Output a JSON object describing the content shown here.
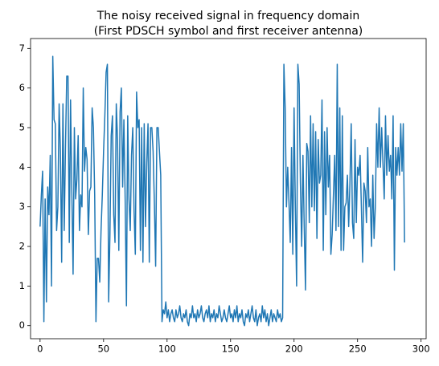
{
  "chart_data": {
    "type": "line",
    "title": [
      "The noisy received signal in frequency domain",
      "(First PDSCH symbol and first receiver antenna)"
    ],
    "x": [
      0,
      1,
      2,
      3,
      4,
      5,
      6,
      7,
      8,
      9,
      10,
      11,
      12,
      13,
      14,
      15,
      16,
      17,
      18,
      19,
      20,
      21,
      22,
      23,
      24,
      25,
      26,
      27,
      28,
      29,
      30,
      31,
      32,
      33,
      34,
      35,
      36,
      37,
      38,
      39,
      40,
      41,
      42,
      43,
      44,
      45,
      46,
      47,
      48,
      49,
      50,
      51,
      52,
      53,
      54,
      55,
      56,
      57,
      58,
      59,
      60,
      61,
      62,
      63,
      64,
      65,
      66,
      67,
      68,
      69,
      70,
      71,
      72,
      73,
      74,
      75,
      76,
      77,
      78,
      79,
      80,
      81,
      82,
      83,
      84,
      85,
      86,
      87,
      88,
      89,
      90,
      91,
      92,
      93,
      94,
      95,
      96,
      97,
      98,
      99,
      100,
      101,
      102,
      103,
      104,
      105,
      106,
      107,
      108,
      109,
      110,
      111,
      112,
      113,
      114,
      115,
      116,
      117,
      118,
      119,
      120,
      121,
      122,
      123,
      124,
      125,
      126,
      127,
      128,
      129,
      130,
      131,
      132,
      133,
      134,
      135,
      136,
      137,
      138,
      139,
      140,
      141,
      142,
      143,
      144,
      145,
      146,
      147,
      148,
      149,
      150,
      151,
      152,
      153,
      154,
      155,
      156,
      157,
      158,
      159,
      160,
      161,
      162,
      163,
      164,
      165,
      166,
      167,
      168,
      169,
      170,
      171,
      172,
      173,
      174,
      175,
      176,
      177,
      178,
      179,
      180,
      181,
      182,
      183,
      184,
      185,
      186,
      187,
      188,
      189,
      190,
      191,
      192,
      193,
      194,
      195,
      196,
      197,
      198,
      199,
      200,
      201,
      202,
      203,
      204,
      205,
      206,
      207,
      208,
      209,
      210,
      211,
      212,
      213,
      214,
      215,
      216,
      217,
      218,
      219,
      220,
      221,
      222,
      223,
      224,
      225,
      226,
      227,
      228,
      229,
      230,
      231,
      232,
      233,
      234,
      235,
      236,
      237,
      238,
      239,
      240,
      241,
      242,
      243,
      244,
      245,
      246,
      247,
      248,
      249,
      250,
      251,
      252,
      253,
      254,
      255,
      256,
      257,
      258,
      259,
      260,
      261,
      262,
      263,
      264,
      265,
      266,
      267,
      268,
      269,
      270,
      271,
      272,
      273,
      274,
      275,
      276,
      277,
      278,
      279,
      280,
      281,
      282,
      283,
      284,
      285,
      286,
      287
    ],
    "series": [
      {
        "color": "#1f77b4",
        "values": [
          2.5,
          3.3,
          3.9,
          0.1,
          3.2,
          0.6,
          3.5,
          2.8,
          4.3,
          1.0,
          6.8,
          5.2,
          5.1,
          2.4,
          3.0,
          5.6,
          4.4,
          1.6,
          5.6,
          2.4,
          4.5,
          6.3,
          6.3,
          2.1,
          5.7,
          3.4,
          1.3,
          5.0,
          3.2,
          3.7,
          4.8,
          2.4,
          3.3,
          3.0,
          6.0,
          3.9,
          4.5,
          4.2,
          2.3,
          3.4,
          3.5,
          5.5,
          5.0,
          3.3,
          0.1,
          1.7,
          1.7,
          1.1,
          2.4,
          3.3,
          4.4,
          5.3,
          6.4,
          6.6,
          0.6,
          2.3,
          4.8,
          5.3,
          2.8,
          2.1,
          5.6,
          4.7,
          1.9,
          5.4,
          6.0,
          3.5,
          5.2,
          3.2,
          0.5,
          5.3,
          3.2,
          2.4,
          4.3,
          5.0,
          2.9,
          1.8,
          5.9,
          5.0,
          5.2,
          1.9,
          5.0,
          1.6,
          5.1,
          2.5,
          4.1,
          5.1,
          1.6,
          5.0,
          5.0,
          4.4,
          3.1,
          1.5,
          5.0,
          5.0,
          4.4,
          3.8,
          0.1,
          0.4,
          0.3,
          0.6,
          0.2,
          0.4,
          0.1,
          0.3,
          0.4,
          0.2,
          0.1,
          0.4,
          0.2,
          0.3,
          0.5,
          0.2,
          0.1,
          0.3,
          0.2,
          0.4,
          0.1,
          0.0,
          0.3,
          0.2,
          0.5,
          0.2,
          0.3,
          0.1,
          0.4,
          0.2,
          0.3,
          0.5,
          0.2,
          0.1,
          0.3,
          0.4,
          0.2,
          0.5,
          0.1,
          0.3,
          0.2,
          0.4,
          0.1,
          0.3,
          0.2,
          0.5,
          0.3,
          0.1,
          0.2,
          0.4,
          0.2,
          0.1,
          0.3,
          0.5,
          0.2,
          0.3,
          0.1,
          0.4,
          0.2,
          0.5,
          0.1,
          0.3,
          0.2,
          0.4,
          0.1,
          0.0,
          0.3,
          0.2,
          0.4,
          0.1,
          0.3,
          0.5,
          0.2,
          0.1,
          0.4,
          0.0,
          0.2,
          0.3,
          0.1,
          0.5,
          0.2,
          0.4,
          0.1,
          0.3,
          0.0,
          0.2,
          0.4,
          0.1,
          0.3,
          0.2,
          0.1,
          0.4,
          0.2,
          0.3,
          0.1,
          0.2,
          6.6,
          5.5,
          3.0,
          4.0,
          3.1,
          2.1,
          4.5,
          1.8,
          5.5,
          3.0,
          1.0,
          6.6,
          6.1,
          3.6,
          2.0,
          4.3,
          2.5,
          0.9,
          4.6,
          4.4,
          2.6,
          5.3,
          3.0,
          5.1,
          2.9,
          4.9,
          2.2,
          4.7,
          3.6,
          3.8,
          5.7,
          1.9,
          4.9,
          2.8,
          5.0,
          3.5,
          4.3,
          1.8,
          2.3,
          3.3,
          4.3,
          2.4,
          6.6,
          2.5,
          5.5,
          1.9,
          5.3,
          1.9,
          3.0,
          3.1,
          3.8,
          2.5,
          3.6,
          5.1,
          2.6,
          2.2,
          4.7,
          2.6,
          4.0,
          3.8,
          4.3,
          3.0,
          1.6,
          3.6,
          3.4,
          2.6,
          4.5,
          3.0,
          3.2,
          2.0,
          3.8,
          2.2,
          3.0,
          5.1,
          4.0,
          5.5,
          4.0,
          5.0,
          4.1,
          3.2,
          5.3,
          3.8,
          4.8,
          3.9,
          4.3,
          3.2,
          5.3,
          1.4,
          4.5,
          3.8,
          4.5,
          3.8,
          5.1,
          3.9,
          5.1,
          2.1
        ]
      }
    ],
    "xlim": [
      -7.5,
      304
    ],
    "ylim": [
      -0.33,
      7.25
    ],
    "xticks": [
      0,
      50,
      100,
      150,
      200,
      250,
      300
    ],
    "yticks": [
      0,
      1,
      2,
      3,
      4,
      5,
      6,
      7
    ]
  }
}
